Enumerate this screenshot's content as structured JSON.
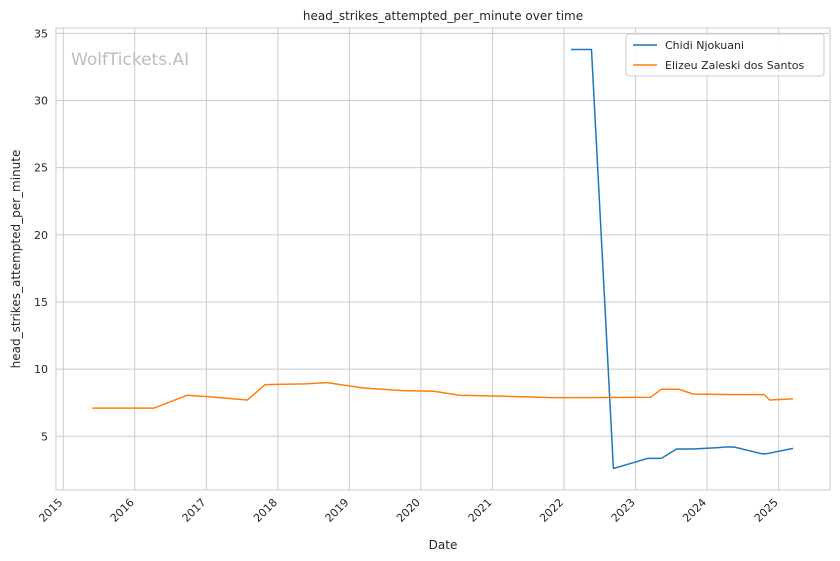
{
  "chart_data": {
    "type": "line",
    "title": "head_strikes_attempted_per_minute over time",
    "xlabel": "Date",
    "ylabel": "head_strikes_attempted_per_minute",
    "watermark": "WolfTickets.AI",
    "x_ticks": [
      "2015",
      "2016",
      "2017",
      "2018",
      "2019",
      "2020",
      "2021",
      "2022",
      "2023",
      "2024",
      "2025"
    ],
    "y_ticks": [
      5,
      10,
      15,
      20,
      25,
      30,
      35
    ],
    "xlim": [
      "2014-11-25",
      "2025-09-20"
    ],
    "ylim": [
      1.0,
      35.4
    ],
    "grid": true,
    "legend_position": "top-right",
    "series": [
      {
        "name": "Chidi Njokuani",
        "color": "#1f77b4",
        "points": [
          [
            "2022-02-05",
            33.8
          ],
          [
            "2022-05-21",
            33.8
          ],
          [
            "2022-09-10",
            2.6
          ],
          [
            "2023-03-04",
            3.35
          ],
          [
            "2023-05-13",
            3.35
          ],
          [
            "2023-07-29",
            4.05
          ],
          [
            "2023-10-21",
            4.05
          ],
          [
            "2024-02-17",
            4.15
          ],
          [
            "2024-04-06",
            4.2
          ],
          [
            "2024-05-18",
            4.2
          ],
          [
            "2024-10-05",
            3.7
          ],
          [
            "2024-11-02",
            3.7
          ],
          [
            "2025-03-15",
            4.1
          ]
        ]
      },
      {
        "name": "Elizeu Zaleski dos Santos",
        "color": "#ff7f0e",
        "points": [
          [
            "2015-05-30",
            7.1
          ],
          [
            "2016-04-09",
            7.1
          ],
          [
            "2016-09-24",
            8.05
          ],
          [
            "2017-01-14",
            7.95
          ],
          [
            "2017-07-29",
            7.7
          ],
          [
            "2017-10-28",
            8.85
          ],
          [
            "2018-05-19",
            8.9
          ],
          [
            "2018-09-08",
            9.0
          ],
          [
            "2019-03-09",
            8.6
          ],
          [
            "2019-09-28",
            8.4
          ],
          [
            "2020-03-07",
            8.35
          ],
          [
            "2020-07-18",
            8.05
          ],
          [
            "2021-03-06",
            7.98
          ],
          [
            "2021-11-06",
            7.88
          ],
          [
            "2022-02-19",
            7.88
          ],
          [
            "2023-03-18",
            7.9
          ],
          [
            "2023-05-13",
            8.5
          ],
          [
            "2023-08-12",
            8.5
          ],
          [
            "2023-10-21",
            8.15
          ],
          [
            "2024-05-18",
            8.1
          ],
          [
            "2024-10-19",
            8.1
          ],
          [
            "2024-11-16",
            7.7
          ],
          [
            "2025-03-15",
            7.78
          ]
        ]
      }
    ]
  }
}
